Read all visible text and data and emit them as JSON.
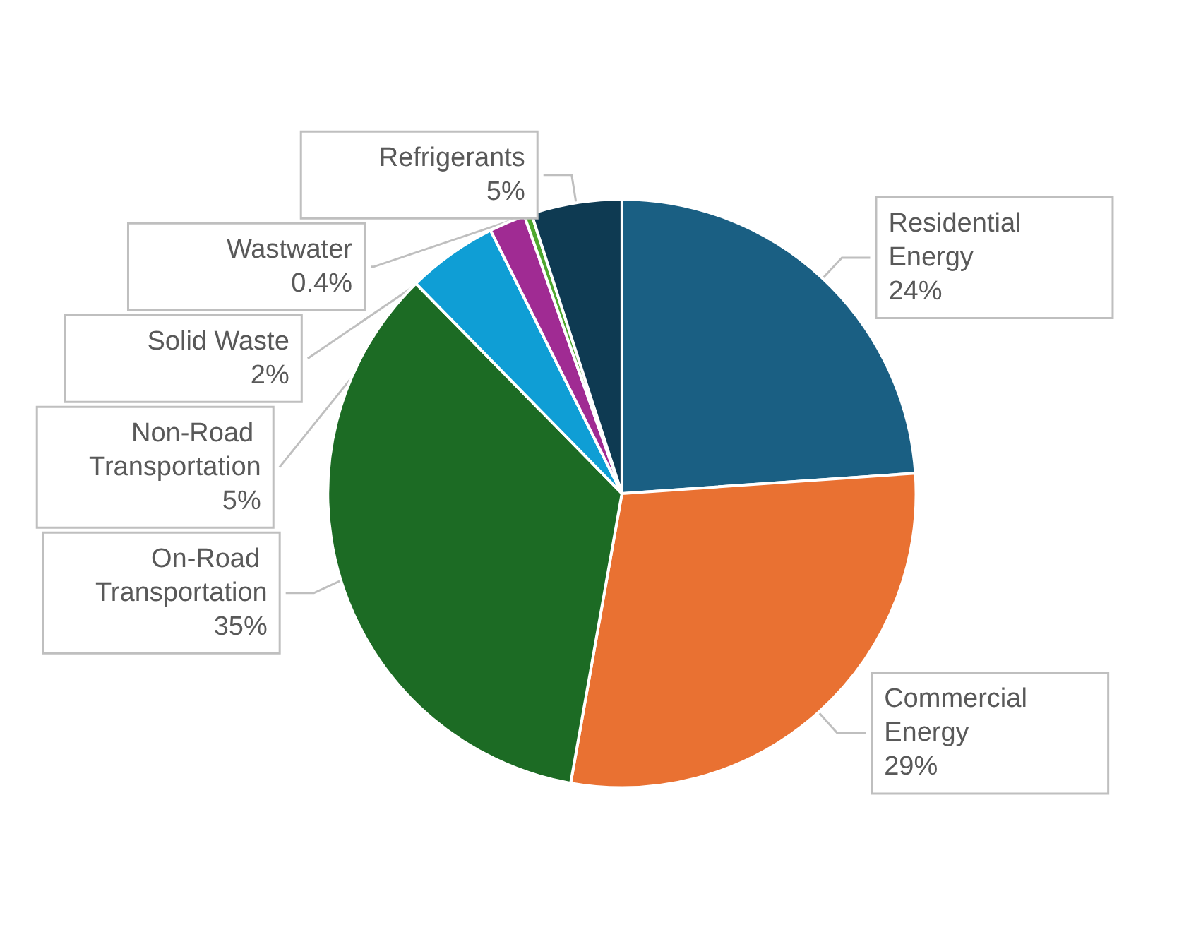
{
  "chart_data": {
    "type": "pie",
    "categories": [
      "Residential Energy",
      "Commercial Energy",
      "On-Road Transportation",
      "Non-Road Transportation",
      "Solid Waste",
      "Wastwater",
      "Refrigerants"
    ],
    "values": [
      24,
      29,
      35,
      5,
      2,
      0.4,
      5
    ],
    "colors": [
      "#1a5f83",
      "#e97132",
      "#1c6b24",
      "#0f9ed5",
      "#a02b93",
      "#4ea72e",
      "#0e3a52"
    ],
    "value_labels": [
      "24%",
      "29%",
      "35%",
      "5%",
      "2%",
      "0.4%",
      "5%"
    ],
    "legend": false
  }
}
